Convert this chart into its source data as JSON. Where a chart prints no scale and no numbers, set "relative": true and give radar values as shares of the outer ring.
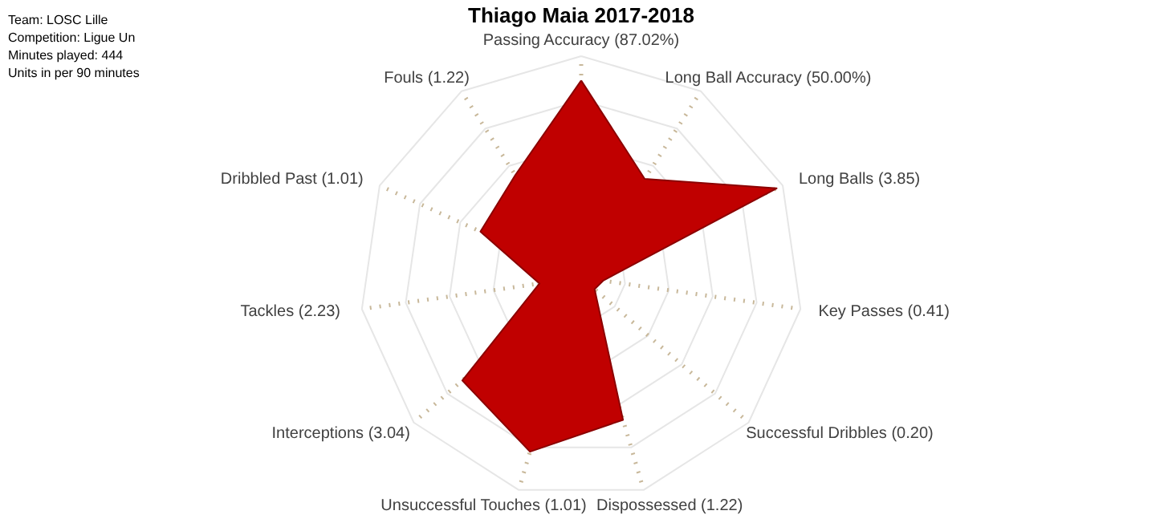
{
  "chart_data": {
    "type": "radar",
    "title": "Thiago Maia 2017-2018",
    "annotations": [
      "Team: LOSC Lille",
      "Competition: Ligue Un",
      "Minutes played: 444",
      "Units in per 90 minutes"
    ],
    "categories": [
      "Passing Accuracy (87.02%)",
      "Long Ball Accuracy (50.00%)",
      "Long Balls (3.85)",
      "Key Passes (0.41)",
      "Successful Dribbles (0.20)",
      "Dispossessed (1.22)",
      "Unsuccessful Touches (1.01)",
      "Interceptions (3.04)",
      "Tackles (2.23)",
      "Dribbled Past (1.01)",
      "Fouls (1.22)"
    ],
    "series": [
      {
        "color": "#c00000",
        "values": [
          0.89,
          0.53,
          0.97,
          0.1,
          0.08,
          0.67,
          0.82,
          0.71,
          0.19,
          0.5,
          0.55
        ]
      }
    ],
    "relative": true,
    "grid": true
  }
}
